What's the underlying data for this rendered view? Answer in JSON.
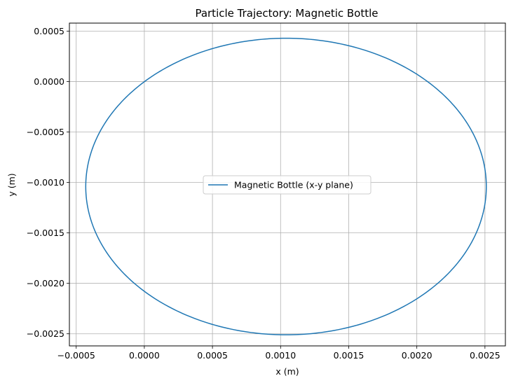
{
  "chart_data": {
    "type": "line",
    "title": "Particle Trajectory: Magnetic Bottle",
    "xlabel": "x (m)",
    "ylabel": "y (m)",
    "xlim": [
      -0.00055,
      0.00265
    ],
    "ylim": [
      -0.00262,
      0.00058
    ],
    "x_ticks": [
      -0.0005,
      0.0,
      0.0005,
      0.001,
      0.0015,
      0.002,
      0.0025
    ],
    "x_tick_labels": [
      "−0.0005",
      "0.0000",
      "0.0005",
      "0.0010",
      "0.0015",
      "0.0020",
      "0.0025"
    ],
    "y_ticks": [
      0.0005,
      0.0,
      -0.0005,
      -0.001,
      -0.0015,
      -0.002,
      -0.0025
    ],
    "y_tick_labels": [
      "0.0005",
      "0.0000",
      "−0.0005",
      "−0.0010",
      "−0.0015",
      "−0.0020",
      "−0.0025"
    ],
    "grid": true,
    "legend_position": "center",
    "series": [
      {
        "name": "Magnetic Bottle (x-y plane)",
        "color": "#1f77b4",
        "shape": "circle",
        "center": [
          0.00104,
          -0.00104
        ],
        "radius": 0.00147
      }
    ]
  }
}
